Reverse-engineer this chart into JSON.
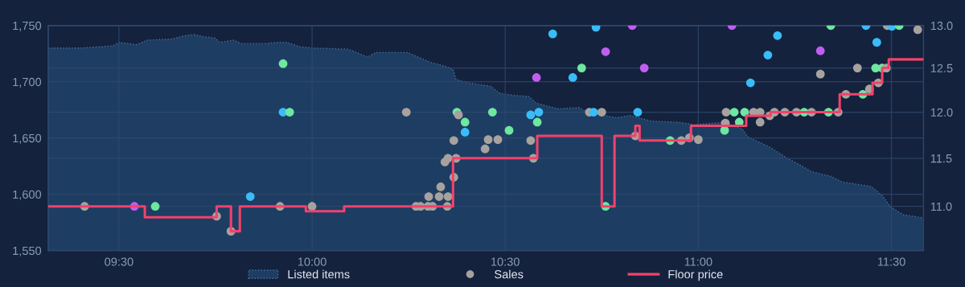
{
  "chart_data": {
    "type": "scatter",
    "xlim": [
      9.317,
      11.583
    ],
    "xticks": [
      {
        "value": 9.5,
        "label": "09:30"
      },
      {
        "value": 10.0,
        "label": "10:00"
      },
      {
        "value": 10.5,
        "label": "10:30"
      },
      {
        "value": 11.0,
        "label": "11:00"
      },
      {
        "value": 11.5,
        "label": "11:30"
      }
    ],
    "ylim": [
      1550,
      1750
    ],
    "yticks": [
      {
        "value": 1550,
        "label": "1,550"
      },
      {
        "value": 1600,
        "label": "1,600"
      },
      {
        "value": 1650,
        "label": "1,650"
      },
      {
        "value": 1700,
        "label": "1,700"
      },
      {
        "value": 1750,
        "label": "1,750"
      }
    ],
    "y2lim": [
      10.56,
      13.0
    ],
    "y2ticks": [
      {
        "value": 11.0,
        "label": "11.0"
      },
      {
        "value": 11.5,
        "label": "11.5"
      },
      {
        "value": 12.0,
        "label": "12.0"
      },
      {
        "value": 12.5,
        "label": "12.5"
      },
      {
        "value": 13.0,
        "label": "13.0"
      }
    ],
    "log": "y2",
    "grid": true,
    "legend": "bottom",
    "series": [
      {
        "name": "Listed items",
        "type": "area",
        "color": "#1e3d63",
        "x": [
          9.317,
          9.401,
          9.484,
          9.501,
          9.546,
          9.573,
          9.636,
          9.671,
          9.696,
          9.719,
          9.748,
          9.761,
          9.796,
          9.817,
          9.879,
          9.91,
          9.935,
          9.969,
          10.004,
          10.094,
          10.144,
          10.165,
          10.248,
          10.281,
          10.31,
          10.344,
          10.365,
          10.373,
          10.406,
          10.463,
          10.484,
          10.519,
          10.561,
          10.581,
          10.636,
          10.692,
          10.712,
          10.789,
          10.823,
          10.879,
          10.948,
          10.989,
          11.066,
          11.114,
          11.128,
          11.185,
          11.226,
          11.295,
          11.343,
          11.372,
          11.447,
          11.476,
          11.497,
          11.53,
          11.582
        ],
        "values": [
          1730,
          1730,
          1732,
          1735,
          1733,
          1737,
          1738,
          1741,
          1742,
          1740,
          1739,
          1735,
          1737,
          1734,
          1734,
          1735,
          1735,
          1731,
          1730,
          1729,
          1722,
          1726,
          1726,
          1721,
          1717,
          1714,
          1711,
          1702,
          1699,
          1696,
          1690,
          1688,
          1687,
          1681,
          1676,
          1677,
          1673,
          1668,
          1670,
          1665,
          1664,
          1662,
          1664,
          1658,
          1651,
          1642,
          1633,
          1620,
          1616,
          1611,
          1607,
          1599,
          1589,
          1582,
          1579
        ]
      },
      {
        "name": "Sales",
        "axis": "y2",
        "x": [
          9.411,
          9.54,
          9.594,
          9.753,
          9.79,
          9.84,
          9.917,
          9.925,
          9.925,
          9.942,
          10.0,
          10.244,
          10.269,
          10.281,
          10.3,
          10.302,
          10.312,
          10.329,
          10.333,
          10.344,
          10.35,
          10.352,
          10.352,
          10.367,
          10.367,
          10.373,
          10.375,
          10.379,
          10.396,
          10.396,
          10.448,
          10.456,
          10.467,
          10.481,
          10.51,
          10.566,
          10.566,
          10.573,
          10.581,
          10.583,
          10.587,
          10.623,
          10.675,
          10.698,
          10.718,
          10.729,
          10.735,
          10.75,
          10.76,
          10.76,
          10.829,
          10.837,
          10.843,
          10.86,
          10.927,
          10.956,
          10.977,
          11.0,
          11.068,
          11.07,
          11.072,
          11.087,
          11.093,
          11.106,
          11.12,
          11.135,
          11.143,
          11.16,
          11.16,
          11.18,
          11.185,
          11.197,
          11.205,
          11.224,
          11.254,
          11.274,
          11.293,
          11.316,
          11.316,
          11.337,
          11.343,
          11.362,
          11.382,
          11.412,
          11.426,
          11.434,
          11.443,
          11.459,
          11.462,
          11.466,
          11.476,
          11.487,
          11.489,
          11.501,
          11.52,
          11.568
        ],
        "values": [
          11.0,
          11.0,
          11.0,
          10.9,
          10.75,
          11.1,
          11.0,
          12.55,
          12.0,
          12.0,
          11.0,
          12.0,
          11.0,
          11.0,
          11.0,
          11.1,
          11.0,
          11.1,
          11.2,
          11.46,
          11.0,
          11.1,
          11.5,
          11.3,
          11.69,
          11.5,
          12.0,
          11.97,
          11.89,
          11.78,
          11.6,
          11.7,
          12.0,
          11.7,
          11.8,
          11.69,
          11.97,
          11.5,
          12.39,
          11.89,
          12.0,
          12.9,
          12.39,
          12.5,
          12.0,
          12.0,
          12.98,
          12.0,
          12.69,
          11.0,
          13.0,
          11.74,
          12.0,
          12.5,
          11.69,
          11.69,
          11.72,
          11.7,
          11.8,
          11.88,
          12.0,
          13.0,
          12.0,
          11.89,
          12.0,
          12.33,
          12.0,
          12.0,
          11.89,
          12.65,
          11.96,
          12.0,
          12.88,
          12.0,
          12.0,
          12.0,
          12.0,
          12.7,
          12.43,
          12.0,
          13.0,
          12.0,
          12.2,
          12.5,
          12.2,
          13.0,
          12.26,
          12.5,
          12.8,
          12.33,
          12.5,
          12.5,
          13.0,
          12.99,
          13.0,
          12.95
        ],
        "colors": [
          "#a8a29e",
          "#c05ef0",
          "#6ee7a0",
          "#a8a29e",
          "#a8a29e",
          "#38bdf8",
          "#a8a29e",
          "#6ee7a0",
          "#38bdf8",
          "#6ee7a0",
          "#a8a29e",
          "#a8a29e",
          "#a8a29e",
          "#a8a29e",
          "#a8a29e",
          "#a8a29e",
          "#a8a29e",
          "#a8a29e",
          "#a8a29e",
          "#a8a29e",
          "#a8a29e",
          "#a8a29e",
          "#a8a29e",
          "#a8a29e",
          "#a8a29e",
          "#a8a29e",
          "#6ee7a0",
          "#a8a29e",
          "#6ee7a0",
          "#38bdf8",
          "#a8a29e",
          "#a8a29e",
          "#6ee7a0",
          "#a8a29e",
          "#6ee7a0",
          "#a8a29e",
          "#38bdf8",
          "#a8a29e",
          "#c05ef0",
          "#6ee7a0",
          "#38bdf8",
          "#38bdf8",
          "#38bdf8",
          "#6ee7a0",
          "#a8a29e",
          "#38bdf8",
          "#38bdf8",
          "#a8a29e",
          "#c05ef0",
          "#6ee7a0",
          "#c05ef0",
          "#a8a29e",
          "#38bdf8",
          "#c05ef0",
          "#6ee7a0",
          "#a8a29e",
          "#a8a29e",
          "#a8a29e",
          "#6ee7a0",
          "#a8a29e",
          "#a8a29e",
          "#c05ef0",
          "#6ee7a0",
          "#6ee7a0",
          "#6ee7a0",
          "#38bdf8",
          "#a8a29e",
          "#a8a29e",
          "#a8a29e",
          "#38bdf8",
          "#a8a29e",
          "#a8a29e",
          "#38bdf8",
          "#a8a29e",
          "#a8a29e",
          "#6ee7a0",
          "#a8a29e",
          "#c05ef0",
          "#a8a29e",
          "#6ee7a0",
          "#6ee7a0",
          "#a8a29e",
          "#a8a29e",
          "#a8a29e",
          "#6ee7a0",
          "#38bdf8",
          "#a8a29e",
          "#6ee7a0",
          "#38bdf8",
          "#a8a29e",
          "#6ee7a0",
          "#a8a29e",
          "#a8a29e",
          "#38bdf8",
          "#6ee7a0",
          "#a8a29e"
        ]
      },
      {
        "name": "Floor price",
        "type": "step",
        "axis": "y2",
        "color": "#f2426b",
        "x": [
          9.317,
          9.567,
          9.753,
          9.79,
          9.813,
          9.984,
          10.083,
          10.365,
          10.583,
          10.75,
          10.783,
          10.837,
          10.848,
          10.981,
          11.124,
          11.187,
          11.366,
          11.451,
          11.476,
          11.493,
          11.583
        ],
        "values": [
          11.0,
          10.89,
          11.0,
          10.75,
          11.0,
          10.95,
          11.0,
          11.5,
          11.74,
          11.0,
          11.74,
          11.85,
          11.69,
          11.85,
          11.96,
          12.0,
          12.2,
          12.33,
          12.5,
          12.6,
          12.6
        ]
      }
    ]
  }
}
